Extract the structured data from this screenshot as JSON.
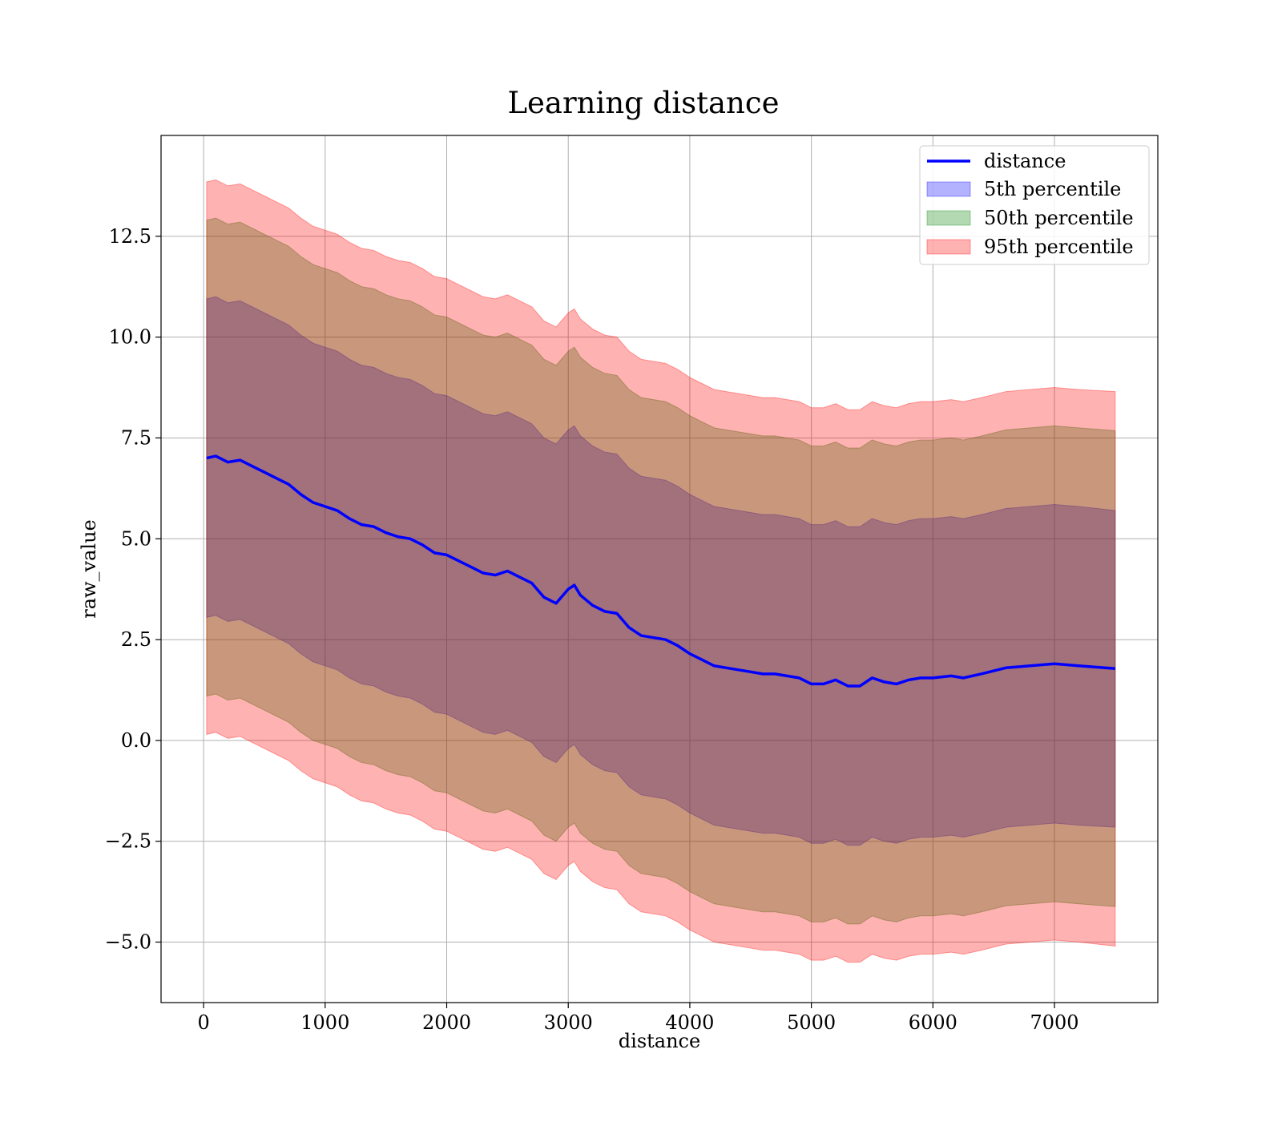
{
  "chart_data": {
    "type": "area",
    "title": "Learning distance",
    "xlabel": "distance",
    "ylabel": "raw_value",
    "xlim": [
      -350,
      7850
    ],
    "ylim": [
      -6.5,
      15.0
    ],
    "x_ticks": [
      0,
      1000,
      2000,
      3000,
      4000,
      5000,
      6000,
      7000
    ],
    "x_tick_labels": [
      "0",
      "1000",
      "2000",
      "3000",
      "4000",
      "5000",
      "6000",
      "7000"
    ],
    "y_ticks": [
      -5.0,
      -2.5,
      0.0,
      2.5,
      5.0,
      7.5,
      10.0,
      12.5
    ],
    "y_tick_labels": [
      "−5.0",
      "−2.5",
      "0.0",
      "2.5",
      "5.0",
      "7.5",
      "10.0",
      "12.5"
    ],
    "grid": true,
    "legend_position": "top-right",
    "legend": [
      {
        "label": "distance",
        "kind": "line",
        "color": "#0000ff"
      },
      {
        "label": "5th percentile",
        "kind": "patch",
        "color": "#0000ff",
        "alpha": 0.3
      },
      {
        "label": "50th percentile",
        "kind": "patch",
        "color": "#008000",
        "alpha": 0.3
      },
      {
        "label": "95th percentile",
        "kind": "patch",
        "color": "#ff0000",
        "alpha": 0.3
      }
    ],
    "x": [
      25,
      100,
      200,
      300,
      400,
      500,
      600,
      700,
      800,
      900,
      1000,
      1100,
      1200,
      1300,
      1400,
      1500,
      1600,
      1700,
      1800,
      1900,
      2000,
      2100,
      2200,
      2300,
      2400,
      2500,
      2600,
      2700,
      2800,
      2900,
      3000,
      3050,
      3100,
      3200,
      3300,
      3400,
      3500,
      3600,
      3700,
      3800,
      3900,
      4000,
      4100,
      4200,
      4300,
      4400,
      4500,
      4600,
      4700,
      4800,
      4900,
      5000,
      5100,
      5200,
      5300,
      5400,
      5500,
      5600,
      5700,
      5800,
      5900,
      6000,
      6150,
      6250,
      6400,
      6600,
      6800,
      7000,
      7200,
      7500
    ],
    "series": [
      {
        "name": "distance",
        "kind": "line",
        "color": "#0000ff",
        "values": [
          7.0,
          7.05,
          6.9,
          6.95,
          6.8,
          6.65,
          6.5,
          6.35,
          6.1,
          5.9,
          5.8,
          5.7,
          5.5,
          5.35,
          5.3,
          5.15,
          5.05,
          5.0,
          4.85,
          4.65,
          4.6,
          4.45,
          4.3,
          4.15,
          4.1,
          4.2,
          4.05,
          3.9,
          3.55,
          3.4,
          3.75,
          3.85,
          3.6,
          3.35,
          3.2,
          3.15,
          2.8,
          2.6,
          2.55,
          2.5,
          2.35,
          2.15,
          2.0,
          1.85,
          1.8,
          1.75,
          1.7,
          1.65,
          1.65,
          1.6,
          1.55,
          1.4,
          1.4,
          1.5,
          1.35,
          1.35,
          1.55,
          1.45,
          1.4,
          1.5,
          1.55,
          1.55,
          1.6,
          1.55,
          1.65,
          1.8,
          1.85,
          1.9,
          1.85,
          1.78
        ]
      },
      {
        "name": "5th percentile",
        "kind": "band",
        "color": "#0000ff",
        "alpha": 0.3,
        "lower": [
          3.05,
          3.1,
          2.95,
          3.0,
          2.85,
          2.7,
          2.55,
          2.4,
          2.15,
          1.95,
          1.85,
          1.75,
          1.55,
          1.4,
          1.35,
          1.2,
          1.1,
          1.05,
          0.9,
          0.7,
          0.65,
          0.5,
          0.35,
          0.2,
          0.15,
          0.25,
          0.1,
          -0.05,
          -0.4,
          -0.55,
          -0.2,
          -0.1,
          -0.35,
          -0.6,
          -0.75,
          -0.8,
          -1.15,
          -1.35,
          -1.4,
          -1.45,
          -1.6,
          -1.8,
          -1.95,
          -2.1,
          -2.15,
          -2.2,
          -2.25,
          -2.3,
          -2.3,
          -2.35,
          -2.4,
          -2.55,
          -2.55,
          -2.45,
          -2.6,
          -2.6,
          -2.4,
          -2.5,
          -2.55,
          -2.45,
          -2.4,
          -2.4,
          -2.35,
          -2.4,
          -2.3,
          -2.15,
          -2.1,
          -2.05,
          -2.1,
          -2.15
        ],
        "upper": [
          10.95,
          11.0,
          10.85,
          10.9,
          10.75,
          10.6,
          10.45,
          10.3,
          10.05,
          9.85,
          9.75,
          9.65,
          9.45,
          9.3,
          9.25,
          9.1,
          9.0,
          8.95,
          8.8,
          8.6,
          8.55,
          8.4,
          8.25,
          8.1,
          8.05,
          8.15,
          8.0,
          7.85,
          7.5,
          7.35,
          7.7,
          7.8,
          7.55,
          7.3,
          7.15,
          7.1,
          6.75,
          6.55,
          6.5,
          6.45,
          6.3,
          6.1,
          5.95,
          5.8,
          5.75,
          5.7,
          5.65,
          5.6,
          5.6,
          5.55,
          5.5,
          5.35,
          5.35,
          5.45,
          5.3,
          5.3,
          5.5,
          5.4,
          5.35,
          5.45,
          5.5,
          5.5,
          5.55,
          5.5,
          5.6,
          5.75,
          5.8,
          5.85,
          5.8,
          5.7
        ]
      },
      {
        "name": "50th percentile",
        "kind": "band",
        "color": "#008000",
        "alpha": 0.3,
        "lower": [
          1.1,
          1.15,
          1.0,
          1.05,
          0.9,
          0.75,
          0.6,
          0.45,
          0.2,
          0.0,
          -0.1,
          -0.2,
          -0.4,
          -0.55,
          -0.6,
          -0.75,
          -0.85,
          -0.9,
          -1.05,
          -1.25,
          -1.3,
          -1.45,
          -1.6,
          -1.75,
          -1.8,
          -1.7,
          -1.85,
          -2.0,
          -2.35,
          -2.5,
          -2.15,
          -2.05,
          -2.3,
          -2.55,
          -2.7,
          -2.75,
          -3.1,
          -3.3,
          -3.35,
          -3.4,
          -3.55,
          -3.75,
          -3.9,
          -4.05,
          -4.1,
          -4.15,
          -4.2,
          -4.25,
          -4.25,
          -4.3,
          -4.35,
          -4.5,
          -4.5,
          -4.4,
          -4.55,
          -4.55,
          -4.35,
          -4.45,
          -4.5,
          -4.4,
          -4.35,
          -4.35,
          -4.3,
          -4.35,
          -4.25,
          -4.1,
          -4.05,
          -4.0,
          -4.05,
          -4.12
        ],
        "upper": [
          12.9,
          12.95,
          12.8,
          12.85,
          12.7,
          12.55,
          12.4,
          12.25,
          12.0,
          11.8,
          11.7,
          11.6,
          11.4,
          11.25,
          11.2,
          11.05,
          10.95,
          10.9,
          10.75,
          10.55,
          10.5,
          10.35,
          10.2,
          10.05,
          10.0,
          10.1,
          9.95,
          9.8,
          9.45,
          9.3,
          9.65,
          9.75,
          9.5,
          9.25,
          9.1,
          9.05,
          8.7,
          8.5,
          8.45,
          8.4,
          8.25,
          8.05,
          7.9,
          7.75,
          7.7,
          7.65,
          7.6,
          7.55,
          7.55,
          7.5,
          7.45,
          7.3,
          7.3,
          7.4,
          7.25,
          7.25,
          7.45,
          7.35,
          7.3,
          7.4,
          7.45,
          7.45,
          7.5,
          7.45,
          7.55,
          7.7,
          7.75,
          7.8,
          7.75,
          7.68
        ]
      },
      {
        "name": "95th percentile",
        "kind": "band",
        "color": "#ff0000",
        "alpha": 0.3,
        "lower": [
          0.15,
          0.2,
          0.05,
          0.1,
          -0.05,
          -0.2,
          -0.35,
          -0.5,
          -0.75,
          -0.95,
          -1.05,
          -1.15,
          -1.35,
          -1.5,
          -1.55,
          -1.7,
          -1.8,
          -1.85,
          -2.0,
          -2.2,
          -2.25,
          -2.4,
          -2.55,
          -2.7,
          -2.75,
          -2.65,
          -2.8,
          -2.95,
          -3.3,
          -3.45,
          -3.1,
          -3.0,
          -3.25,
          -3.5,
          -3.65,
          -3.7,
          -4.05,
          -4.25,
          -4.3,
          -4.35,
          -4.5,
          -4.7,
          -4.85,
          -5.0,
          -5.05,
          -5.1,
          -5.15,
          -5.2,
          -5.2,
          -5.25,
          -5.3,
          -5.45,
          -5.45,
          -5.35,
          -5.5,
          -5.5,
          -5.3,
          -5.4,
          -5.45,
          -5.35,
          -5.3,
          -5.3,
          -5.25,
          -5.3,
          -5.2,
          -5.05,
          -5.0,
          -4.95,
          -5.0,
          -5.1
        ],
        "upper": [
          13.85,
          13.9,
          13.75,
          13.8,
          13.65,
          13.5,
          13.35,
          13.2,
          12.95,
          12.75,
          12.65,
          12.55,
          12.35,
          12.2,
          12.15,
          12.0,
          11.9,
          11.85,
          11.7,
          11.5,
          11.45,
          11.3,
          11.15,
          11.0,
          10.95,
          11.05,
          10.9,
          10.75,
          10.4,
          10.25,
          10.6,
          10.7,
          10.45,
          10.2,
          10.05,
          10.0,
          9.65,
          9.45,
          9.4,
          9.35,
          9.2,
          9.0,
          8.85,
          8.7,
          8.65,
          8.6,
          8.55,
          8.5,
          8.5,
          8.45,
          8.4,
          8.25,
          8.25,
          8.35,
          8.2,
          8.2,
          8.4,
          8.3,
          8.25,
          8.35,
          8.4,
          8.4,
          8.45,
          8.4,
          8.5,
          8.65,
          8.7,
          8.75,
          8.7,
          8.65
        ]
      }
    ]
  }
}
